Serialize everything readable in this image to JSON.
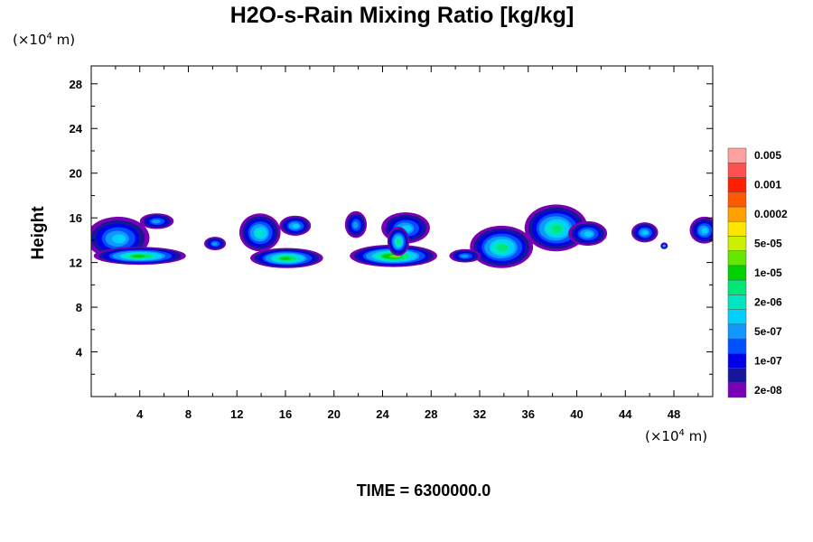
{
  "chart_data": {
    "type": "contour",
    "title": "H2O-s-Rain Mixing Ratio [kg/kg]",
    "xlabel": "",
    "ylabel": "Height",
    "x_unit": {
      "prefix": "(×10",
      "exp": "4",
      "suffix": " m)"
    },
    "y_unit": {
      "prefix": "(×10",
      "exp": "4",
      "suffix": " m)"
    },
    "xlim": [
      0,
      51.2
    ],
    "ylim": [
      0,
      29.6
    ],
    "x_ticks": [
      4,
      8,
      12,
      16,
      20,
      24,
      28,
      32,
      36,
      40,
      44,
      48
    ],
    "y_ticks": [
      4,
      8,
      12,
      16,
      20,
      24,
      28
    ],
    "x_tick_labels": [
      "4",
      "8",
      "12",
      "16",
      "20",
      "24",
      "28",
      "32",
      "36",
      "40",
      "44",
      "48"
    ],
    "y_tick_labels": [
      "4",
      "8",
      "12",
      "16",
      "20",
      "24",
      "28"
    ],
    "time_label": "TIME = 6300000.0",
    "legend": {
      "position": "right",
      "colors": [
        "#7a00b5",
        "#16169a",
        "#0000e6",
        "#0050ff",
        "#1296ff",
        "#00d0ff",
        "#00e6c0",
        "#00e678",
        "#00d200",
        "#64e600",
        "#c8f000",
        "#ffe600",
        "#ffa000",
        "#ff5a00",
        "#ff1e00",
        "#ff5050",
        "#ffa0a0"
      ],
      "labels": [
        "2e-08",
        "1e-07",
        "5e-07",
        "2e-06",
        "1e-05",
        "5e-05",
        "0.0002",
        "0.001",
        "0.005"
      ]
    },
    "cloud_cells": [
      {
        "x": 2.2,
        "y": 14.2,
        "rx": 2.6,
        "ry": 1.9,
        "level": 5
      },
      {
        "x": 5.4,
        "y": 15.7,
        "rx": 1.4,
        "ry": 0.7,
        "level": 4
      },
      {
        "x": 4.0,
        "y": 12.6,
        "rx": 3.8,
        "ry": 0.8,
        "level": 8
      },
      {
        "x": 13.9,
        "y": 14.7,
        "rx": 1.7,
        "ry": 1.7,
        "level": 6
      },
      {
        "x": 16.8,
        "y": 15.3,
        "rx": 1.3,
        "ry": 0.9,
        "level": 5
      },
      {
        "x": 10.2,
        "y": 13.7,
        "rx": 0.9,
        "ry": 0.6,
        "level": 4
      },
      {
        "x": 16.1,
        "y": 12.4,
        "rx": 3.0,
        "ry": 0.9,
        "level": 8
      },
      {
        "x": 21.8,
        "y": 15.4,
        "rx": 0.9,
        "ry": 1.2,
        "level": 4
      },
      {
        "x": 25.9,
        "y": 15.1,
        "rx": 2.0,
        "ry": 1.4,
        "level": 5
      },
      {
        "x": 24.9,
        "y": 12.6,
        "rx": 3.6,
        "ry": 1.0,
        "level": 9
      },
      {
        "x": 25.3,
        "y": 13.9,
        "rx": 0.9,
        "ry": 1.3,
        "level": 7
      },
      {
        "x": 33.8,
        "y": 13.4,
        "rx": 2.6,
        "ry": 1.9,
        "level": 7
      },
      {
        "x": 38.3,
        "y": 15.1,
        "rx": 2.6,
        "ry": 2.1,
        "level": 7
      },
      {
        "x": 40.9,
        "y": 14.6,
        "rx": 1.6,
        "ry": 1.1,
        "level": 5
      },
      {
        "x": 30.8,
        "y": 12.6,
        "rx": 1.3,
        "ry": 0.6,
        "level": 4
      },
      {
        "x": 45.6,
        "y": 14.7,
        "rx": 1.1,
        "ry": 0.9,
        "level": 5
      },
      {
        "x": 47.2,
        "y": 13.5,
        "rx": 0.3,
        "ry": 0.3,
        "level": 5
      },
      {
        "x": 50.5,
        "y": 14.9,
        "rx": 1.2,
        "ry": 1.2,
        "level": 5
      }
    ]
  }
}
